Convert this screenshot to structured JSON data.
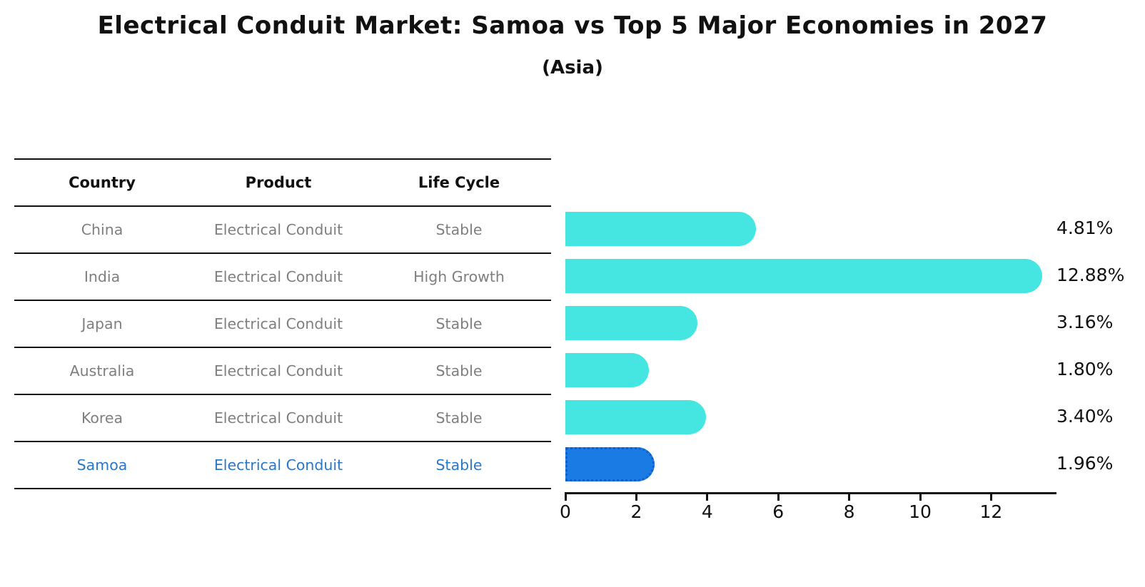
{
  "header": {
    "title": "Electrical Conduit Market: Samoa vs Top 5 Major Economies in 2027",
    "subtitle": "(Asia)"
  },
  "table": {
    "columns": [
      "Country",
      "Product",
      "Life Cycle"
    ],
    "rows": [
      {
        "country": "China",
        "product": "Electrical Conduit",
        "life_cycle": "Stable",
        "highlight": false
      },
      {
        "country": "India",
        "product": "Electrical Conduit",
        "life_cycle": "High Growth",
        "highlight": false
      },
      {
        "country": "Japan",
        "product": "Electrical Conduit",
        "life_cycle": "Stable",
        "highlight": false
      },
      {
        "country": "Australia",
        "product": "Electrical Conduit",
        "life_cycle": "Stable",
        "highlight": false
      },
      {
        "country": "Korea",
        "product": "Electrical Conduit",
        "life_cycle": "Stable",
        "highlight": false
      },
      {
        "country": "Samoa",
        "product": "Electrical Conduit",
        "life_cycle": "Stable",
        "highlight": true
      }
    ]
  },
  "chart_data": {
    "type": "bar",
    "orientation": "horizontal",
    "title": "Electrical Conduit Market: Samoa vs Top 5 Major Economies in 2027",
    "subtitle": "(Asia)",
    "categories": [
      "China",
      "India",
      "Japan",
      "Australia",
      "Korea",
      "Samoa"
    ],
    "values": [
      4.81,
      12.88,
      3.16,
      1.8,
      3.4,
      1.96
    ],
    "value_labels": [
      "4.81%",
      "12.88%",
      "3.16%",
      "1.80%",
      "3.40%",
      "1.96%"
    ],
    "x_ticks": [
      0,
      2,
      4,
      6,
      8,
      10,
      12
    ],
    "xlim": [
      0,
      13.5
    ],
    "grid": false,
    "legend": "none",
    "highlight_category": "Samoa",
    "colors": {
      "bar": "#45e6e2",
      "highlight_bar": "#1b7be4",
      "highlight_bar_border": "#0d5fc9",
      "highlight_text": "#2878c8",
      "row_text": "#7f7f7f",
      "text": "#111111"
    }
  }
}
